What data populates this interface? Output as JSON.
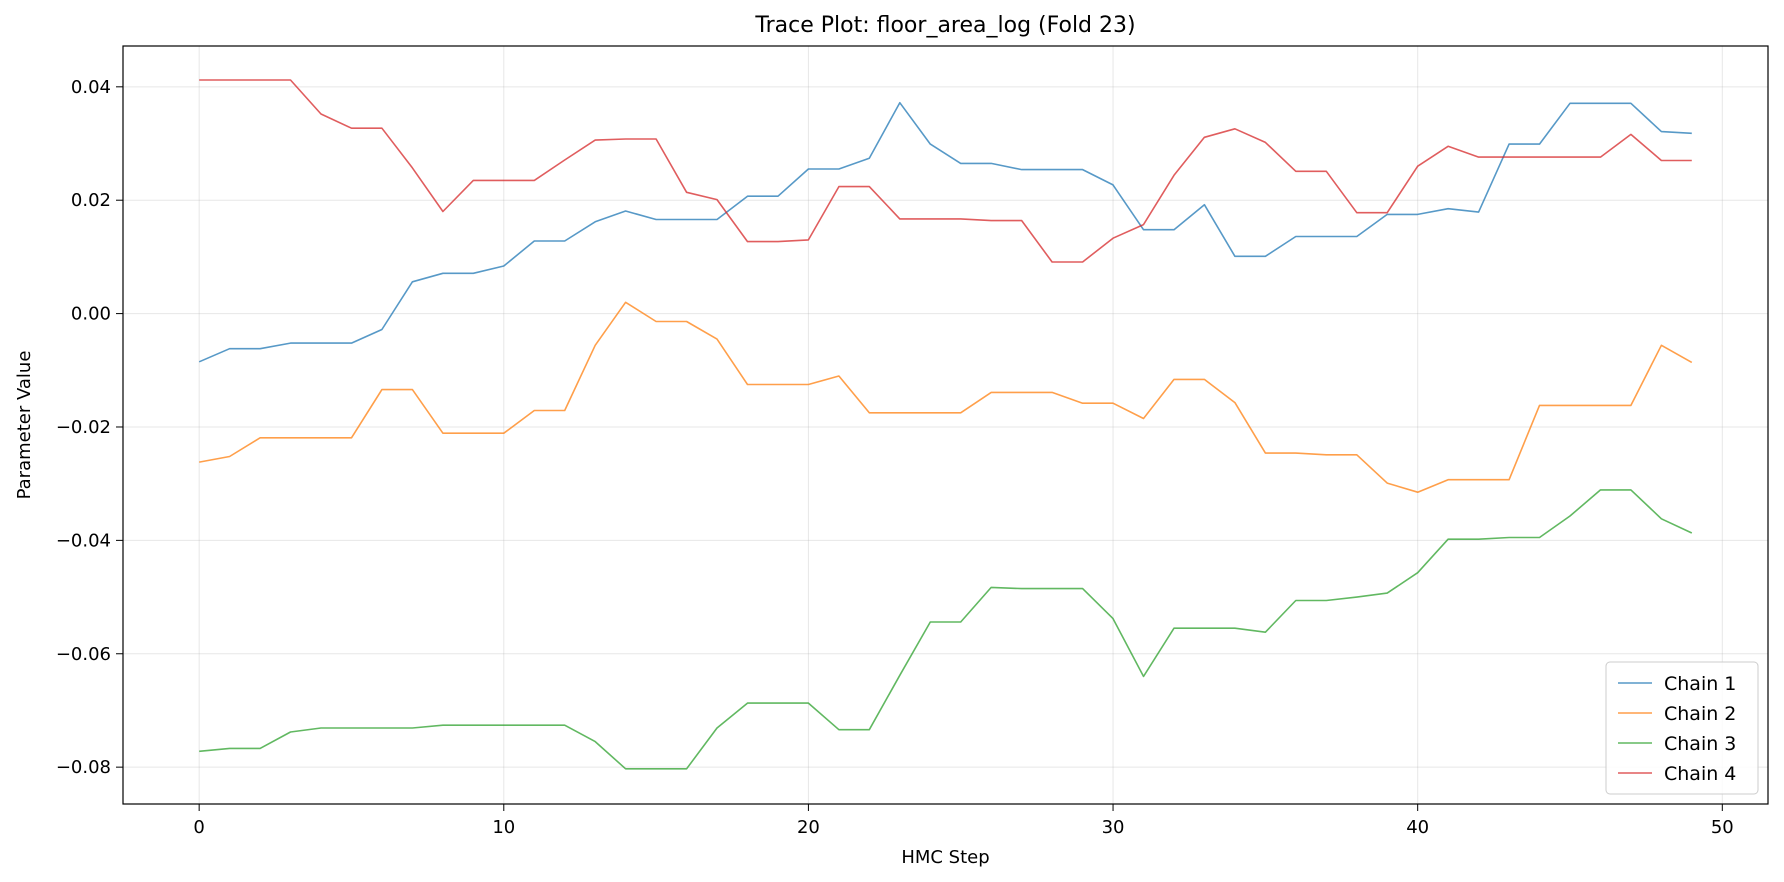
{
  "chart_data": {
    "type": "line",
    "title": "Trace Plot: floor_area_log (Fold 23)",
    "xlabel": "HMC Step",
    "ylabel": "Parameter Value",
    "xlim": [
      -2.5,
      51.5
    ],
    "ylim": [
      -0.0865,
      0.0472
    ],
    "xticks": [
      0,
      10,
      20,
      30,
      40,
      50
    ],
    "xtick_labels": [
      "0",
      "10",
      "20",
      "30",
      "40",
      "50"
    ],
    "yticks": [
      -0.08,
      -0.06,
      -0.04,
      -0.02,
      0.0,
      0.02,
      0.04
    ],
    "ytick_labels": [
      "−0.08",
      "−0.06",
      "−0.04",
      "−0.02",
      "0.00",
      "0.02",
      "0.04"
    ],
    "grid": true,
    "legend_position": "bottom-right",
    "x": [
      0,
      1,
      2,
      3,
      4,
      5,
      6,
      7,
      8,
      9,
      10,
      11,
      12,
      13,
      14,
      15,
      16,
      17,
      18,
      19,
      20,
      21,
      22,
      23,
      24,
      25,
      26,
      27,
      28,
      29,
      30,
      31,
      32,
      33,
      34,
      35,
      36,
      37,
      38,
      39,
      40,
      41,
      42,
      43,
      44,
      45,
      46,
      47,
      48,
      49
    ],
    "series": [
      {
        "name": "Chain 1",
        "color": "#1f77b4",
        "values": [
          -0.0085,
          -0.0062,
          -0.0062,
          -0.0052,
          -0.0052,
          -0.0052,
          -0.0028,
          0.0056,
          0.0071,
          0.0071,
          0.0084,
          0.0128,
          0.0128,
          0.0162,
          0.0181,
          0.0166,
          0.0166,
          0.0166,
          0.0207,
          0.0207,
          0.0255,
          0.0255,
          0.0274,
          0.0372,
          0.0299,
          0.0265,
          0.0265,
          0.0254,
          0.0254,
          0.0254,
          0.0227,
          0.0148,
          0.0148,
          0.0192,
          0.0101,
          0.0101,
          0.0136,
          0.0136,
          0.0136,
          0.0175,
          0.0175,
          0.0185,
          0.0179,
          0.0299,
          0.0299,
          0.0371,
          0.0371,
          0.0371,
          0.0321,
          0.0318
        ]
      },
      {
        "name": "Chain 2",
        "color": "#ff7f0e",
        "values": [
          -0.0262,
          -0.0252,
          -0.0219,
          -0.0219,
          -0.0219,
          -0.0219,
          -0.0134,
          -0.0134,
          -0.0211,
          -0.0211,
          -0.0211,
          -0.0171,
          -0.0171,
          -0.0056,
          0.002,
          -0.0014,
          -0.0014,
          -0.0045,
          -0.0125,
          -0.0125,
          -0.0125,
          -0.011,
          -0.0175,
          -0.0175,
          -0.0175,
          -0.0175,
          -0.0139,
          -0.0139,
          -0.0139,
          -0.0158,
          -0.0158,
          -0.0185,
          -0.0116,
          -0.0116,
          -0.0157,
          -0.0246,
          -0.0246,
          -0.0249,
          -0.0249,
          -0.0299,
          -0.0315,
          -0.0293,
          -0.0293,
          -0.0293,
          -0.0162,
          -0.0162,
          -0.0162,
          -0.0162,
          -0.0056,
          -0.0086
        ]
      },
      {
        "name": "Chain 3",
        "color": "#2ca02c",
        "values": [
          -0.0772,
          -0.0767,
          -0.0767,
          -0.0738,
          -0.0731,
          -0.0731,
          -0.0731,
          -0.0731,
          -0.0726,
          -0.0726,
          -0.0726,
          -0.0726,
          -0.0726,
          -0.0755,
          -0.0803,
          -0.0803,
          -0.0803,
          -0.0731,
          -0.0687,
          -0.0687,
          -0.0687,
          -0.0734,
          -0.0734,
          -0.0638,
          -0.0544,
          -0.0544,
          -0.0483,
          -0.0485,
          -0.0485,
          -0.0485,
          -0.0538,
          -0.064,
          -0.0555,
          -0.0555,
          -0.0555,
          -0.0562,
          -0.0506,
          -0.0506,
          -0.05,
          -0.0493,
          -0.0457,
          -0.0398,
          -0.0398,
          -0.0395,
          -0.0395,
          -0.0357,
          -0.0311,
          -0.0311,
          -0.0362,
          -0.0387
        ]
      },
      {
        "name": "Chain 4",
        "color": "#d62728",
        "values": [
          0.0412,
          0.0412,
          0.0412,
          0.0412,
          0.0352,
          0.0327,
          0.0327,
          0.0257,
          0.018,
          0.0235,
          0.0235,
          0.0235,
          0.0271,
          0.0306,
          0.0308,
          0.0308,
          0.0214,
          0.0201,
          0.0127,
          0.0127,
          0.013,
          0.0224,
          0.0224,
          0.0167,
          0.0167,
          0.0167,
          0.0164,
          0.0164,
          0.0091,
          0.0091,
          0.0133,
          0.0157,
          0.0244,
          0.0311,
          0.0326,
          0.0302,
          0.0251,
          0.0251,
          0.0178,
          0.0178,
          0.026,
          0.0295,
          0.0276,
          0.0276,
          0.0276,
          0.0276,
          0.0276,
          0.0316,
          0.027,
          0.027
        ]
      }
    ]
  }
}
